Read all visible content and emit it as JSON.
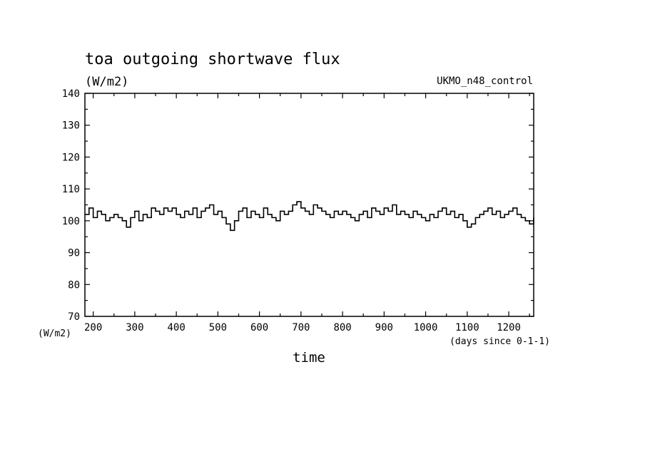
{
  "chart_data": {
    "type": "line",
    "title": "toa outgoing shortwave flux",
    "units": "(W/m2)",
    "dataset_label": "UKMO_n48_control",
    "xlabel": "time",
    "x_units": "(days since 0-1-1)",
    "y_units_corner": "(W/m2)",
    "xlim": [
      180,
      1260
    ],
    "ylim": [
      70,
      140
    ],
    "x_ticks": [
      200,
      300,
      400,
      500,
      600,
      700,
      800,
      900,
      1000,
      1100,
      1200
    ],
    "y_ticks": [
      70,
      80,
      90,
      100,
      110,
      120,
      130,
      140
    ],
    "x_tick_labels": [
      "200",
      "300",
      "400",
      "500",
      "600",
      "700",
      "800",
      "900",
      "1000",
      "1100",
      "1200"
    ],
    "y_tick_labels": [
      "70",
      "80",
      "90",
      "100",
      "110",
      "120",
      "130",
      "140"
    ],
    "grid": false,
    "series": [
      {
        "x": [
          180,
          190,
          200,
          210,
          220,
          230,
          240,
          250,
          260,
          270,
          280,
          290,
          300,
          310,
          320,
          330,
          340,
          350,
          360,
          370,
          380,
          390,
          400,
          410,
          420,
          430,
          440,
          450,
          460,
          470,
          480,
          490,
          500,
          510,
          520,
          530,
          540,
          550,
          560,
          570,
          580,
          590,
          600,
          610,
          620,
          630,
          640,
          650,
          660,
          670,
          680,
          690,
          700,
          710,
          720,
          730,
          740,
          750,
          760,
          770,
          780,
          790,
          800,
          810,
          820,
          830,
          840,
          850,
          860,
          870,
          880,
          890,
          900,
          910,
          920,
          930,
          940,
          950,
          960,
          970,
          980,
          990,
          1000,
          1010,
          1020,
          1030,
          1040,
          1050,
          1060,
          1070,
          1080,
          1090,
          1100,
          1110,
          1120,
          1130,
          1140,
          1150,
          1160,
          1170,
          1180,
          1190,
          1200,
          1210,
          1220,
          1230,
          1240,
          1250,
          1260
        ],
        "values": [
          102,
          104,
          101,
          103,
          102,
          100,
          101,
          102,
          101,
          100,
          98,
          101,
          103,
          100,
          102,
          101,
          104,
          103,
          102,
          104,
          103,
          104,
          102,
          101,
          103,
          102,
          104,
          101,
          103,
          104,
          105,
          102,
          103,
          101,
          99,
          97,
          100,
          103,
          104,
          101,
          103,
          102,
          101,
          104,
          102,
          101,
          100,
          103,
          102,
          103,
          105,
          106,
          104,
          103,
          102,
          105,
          104,
          103,
          102,
          101,
          103,
          102,
          103,
          102,
          101,
          100,
          102,
          103,
          101,
          104,
          103,
          102,
          104,
          103,
          105,
          102,
          103,
          102,
          101,
          103,
          102,
          101,
          100,
          102,
          101,
          103,
          104,
          102,
          103,
          101,
          102,
          100,
          98,
          99,
          101,
          102,
          103,
          104,
          102,
          103,
          101,
          102,
          103,
          104,
          102,
          101,
          100,
          99,
          101
        ]
      }
    ]
  }
}
